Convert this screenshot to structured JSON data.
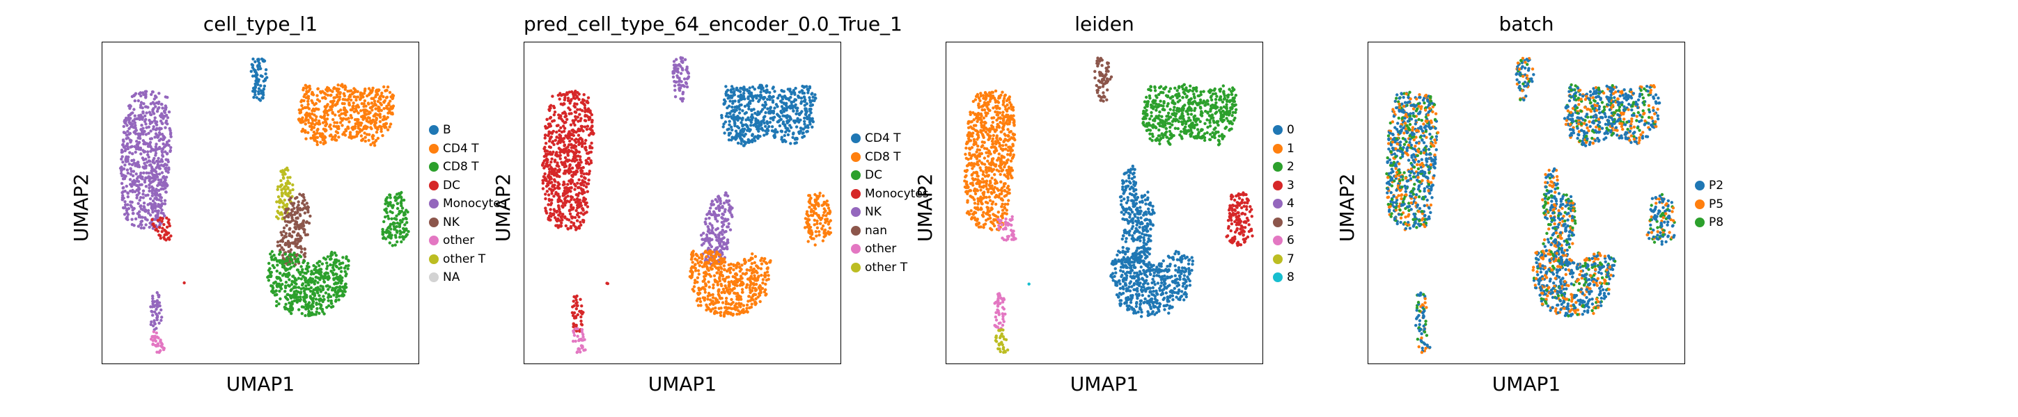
{
  "chart_data": [
    {
      "type": "scatter",
      "title": "cell_type_l1",
      "xlabel": "UMAP1",
      "ylabel": "UMAP2",
      "legend_position": "right",
      "legend": [
        {
          "label": "B",
          "color": "#1f77b4"
        },
        {
          "label": "CD4 T",
          "color": "#ff7f0e"
        },
        {
          "label": "CD8 T",
          "color": "#2ca02c"
        },
        {
          "label": "DC",
          "color": "#d62728"
        },
        {
          "label": "Monocytes",
          "color": "#9467bd"
        },
        {
          "label": "NK",
          "color": "#8c564b"
        },
        {
          "label": "other",
          "color": "#e377c2"
        },
        {
          "label": "other T",
          "color": "#bcbd22"
        },
        {
          "label": "NA",
          "color": "#d3d3d3"
        }
      ],
      "clusters": [
        {
          "name": "Monocytes",
          "color": "#9467bd"
        },
        {
          "name": "DC",
          "color": "#d62728"
        },
        {
          "name": "B",
          "color": "#1f77b4"
        },
        {
          "name": "CD4 T",
          "color": "#ff7f0e"
        },
        {
          "name": "other T",
          "color": "#bcbd22"
        },
        {
          "name": "NK",
          "color": "#8c564b"
        },
        {
          "name": "CD8 T",
          "color": "#2ca02c"
        },
        {
          "name": "other",
          "color": "#e377c2"
        }
      ]
    },
    {
      "type": "scatter",
      "title": "pred_cell_type_64_encoder_0.0_True_1",
      "xlabel": "UMAP1",
      "ylabel": "UMAP2",
      "legend_position": "right",
      "legend": [
        {
          "label": "CD4 T",
          "color": "#1f77b4"
        },
        {
          "label": "CD8 T",
          "color": "#ff7f0e"
        },
        {
          "label": "DC",
          "color": "#2ca02c"
        },
        {
          "label": "Monocytes",
          "color": "#d62728"
        },
        {
          "label": "NK",
          "color": "#9467bd"
        },
        {
          "label": "nan",
          "color": "#8c564b"
        },
        {
          "label": "other",
          "color": "#e377c2"
        },
        {
          "label": "other T",
          "color": "#bcbd22"
        }
      ],
      "clusters": [
        {
          "name": "Monocytes",
          "color": "#d62728"
        },
        {
          "name": "CD4 T",
          "color": "#1f77b4"
        },
        {
          "name": "NK",
          "color": "#9467bd"
        },
        {
          "name": "CD8 T",
          "color": "#ff7f0e"
        },
        {
          "name": "other",
          "color": "#e377c2"
        }
      ]
    },
    {
      "type": "scatter",
      "title": "leiden",
      "xlabel": "UMAP1",
      "ylabel": "UMAP2",
      "legend_position": "right",
      "legend": [
        {
          "label": "0",
          "color": "#1f77b4"
        },
        {
          "label": "1",
          "color": "#ff7f0e"
        },
        {
          "label": "2",
          "color": "#2ca02c"
        },
        {
          "label": "3",
          "color": "#d62728"
        },
        {
          "label": "4",
          "color": "#9467bd"
        },
        {
          "label": "5",
          "color": "#8c564b"
        },
        {
          "label": "6",
          "color": "#e377c2"
        },
        {
          "label": "7",
          "color": "#bcbd22"
        },
        {
          "label": "8",
          "color": "#17becf"
        }
      ],
      "clusters": [
        {
          "name": "1",
          "color": "#ff7f0e"
        },
        {
          "name": "6",
          "color": "#e377c2"
        },
        {
          "name": "0",
          "color": "#1f77b4"
        },
        {
          "name": "2",
          "color": "#2ca02c"
        },
        {
          "name": "3",
          "color": "#d62728"
        },
        {
          "name": "4",
          "color": "#9467bd"
        },
        {
          "name": "5",
          "color": "#8c564b"
        },
        {
          "name": "7",
          "color": "#bcbd22"
        },
        {
          "name": "8",
          "color": "#17becf"
        }
      ]
    },
    {
      "type": "scatter",
      "title": "batch",
      "xlabel": "UMAP1",
      "ylabel": "UMAP2",
      "legend_position": "right",
      "legend": [
        {
          "label": "P2",
          "color": "#1f77b4"
        },
        {
          "label": "P5",
          "color": "#ff7f0e"
        },
        {
          "label": "P8",
          "color": "#2ca02c"
        }
      ],
      "clusters": [
        {
          "name": "P2",
          "color": "#1f77b4"
        },
        {
          "name": "P5",
          "color": "#ff7f0e"
        },
        {
          "name": "P8",
          "color": "#2ca02c"
        }
      ]
    }
  ]
}
